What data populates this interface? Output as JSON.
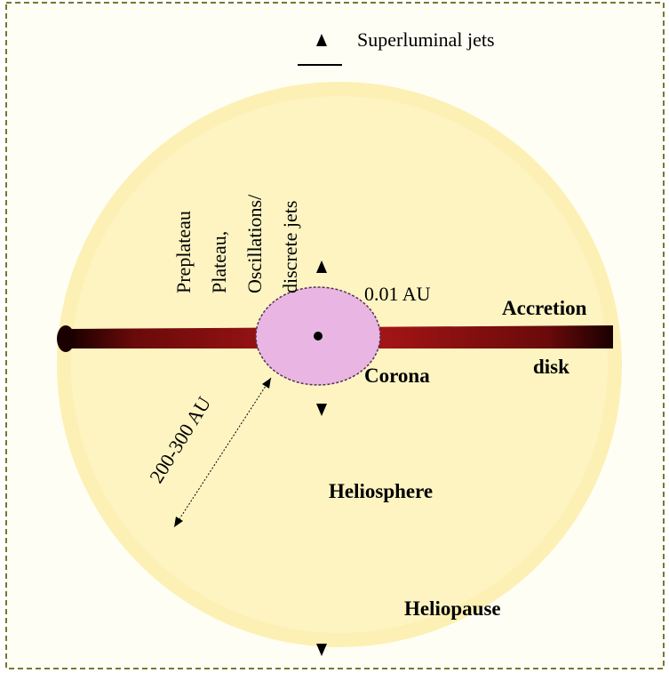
{
  "labels": {
    "superluminal_jets": "Superluminal jets",
    "jet_phases": [
      "Preplateau",
      "Plateau,",
      "Oscillations/",
      "discrete jets"
    ],
    "corona_size": "0.01 AU",
    "accretion_disk": [
      "Accretion",
      "disk"
    ],
    "corona": "Corona",
    "heliosphere_size": "200-300 AU",
    "heliosphere": "Heliosphere",
    "heliopause": "Heliopause"
  }
}
